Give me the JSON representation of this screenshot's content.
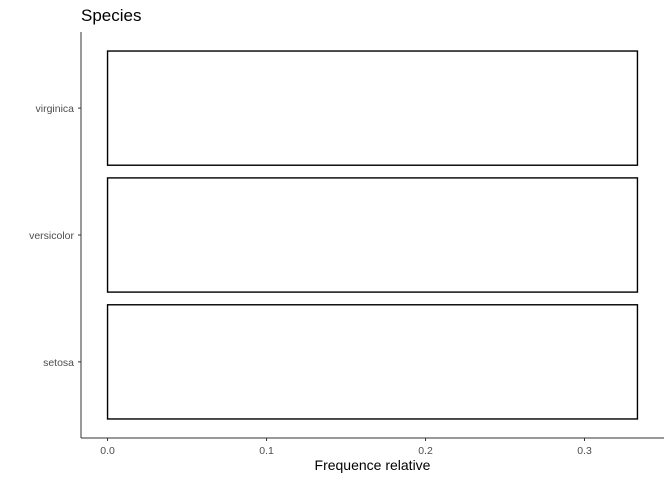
{
  "chart_data": {
    "type": "bar",
    "orientation": "horizontal",
    "title": "Species",
    "xlabel": "Frequence relative",
    "ylabel": "",
    "categories": [
      "setosa",
      "versicolor",
      "virginica"
    ],
    "values": [
      0.3333,
      0.3333,
      0.3333
    ],
    "xlim": [
      -0.0167,
      0.35
    ],
    "xticks": [
      0.0,
      0.1,
      0.2,
      0.3
    ],
    "xtick_labels": [
      "0.0",
      "0.1",
      "0.2",
      "0.3"
    ],
    "grid": false,
    "bar_fill": "#ffffff",
    "bar_stroke": "#000000",
    "axis_color": "#333333",
    "text_color": "#4d4d4d"
  }
}
